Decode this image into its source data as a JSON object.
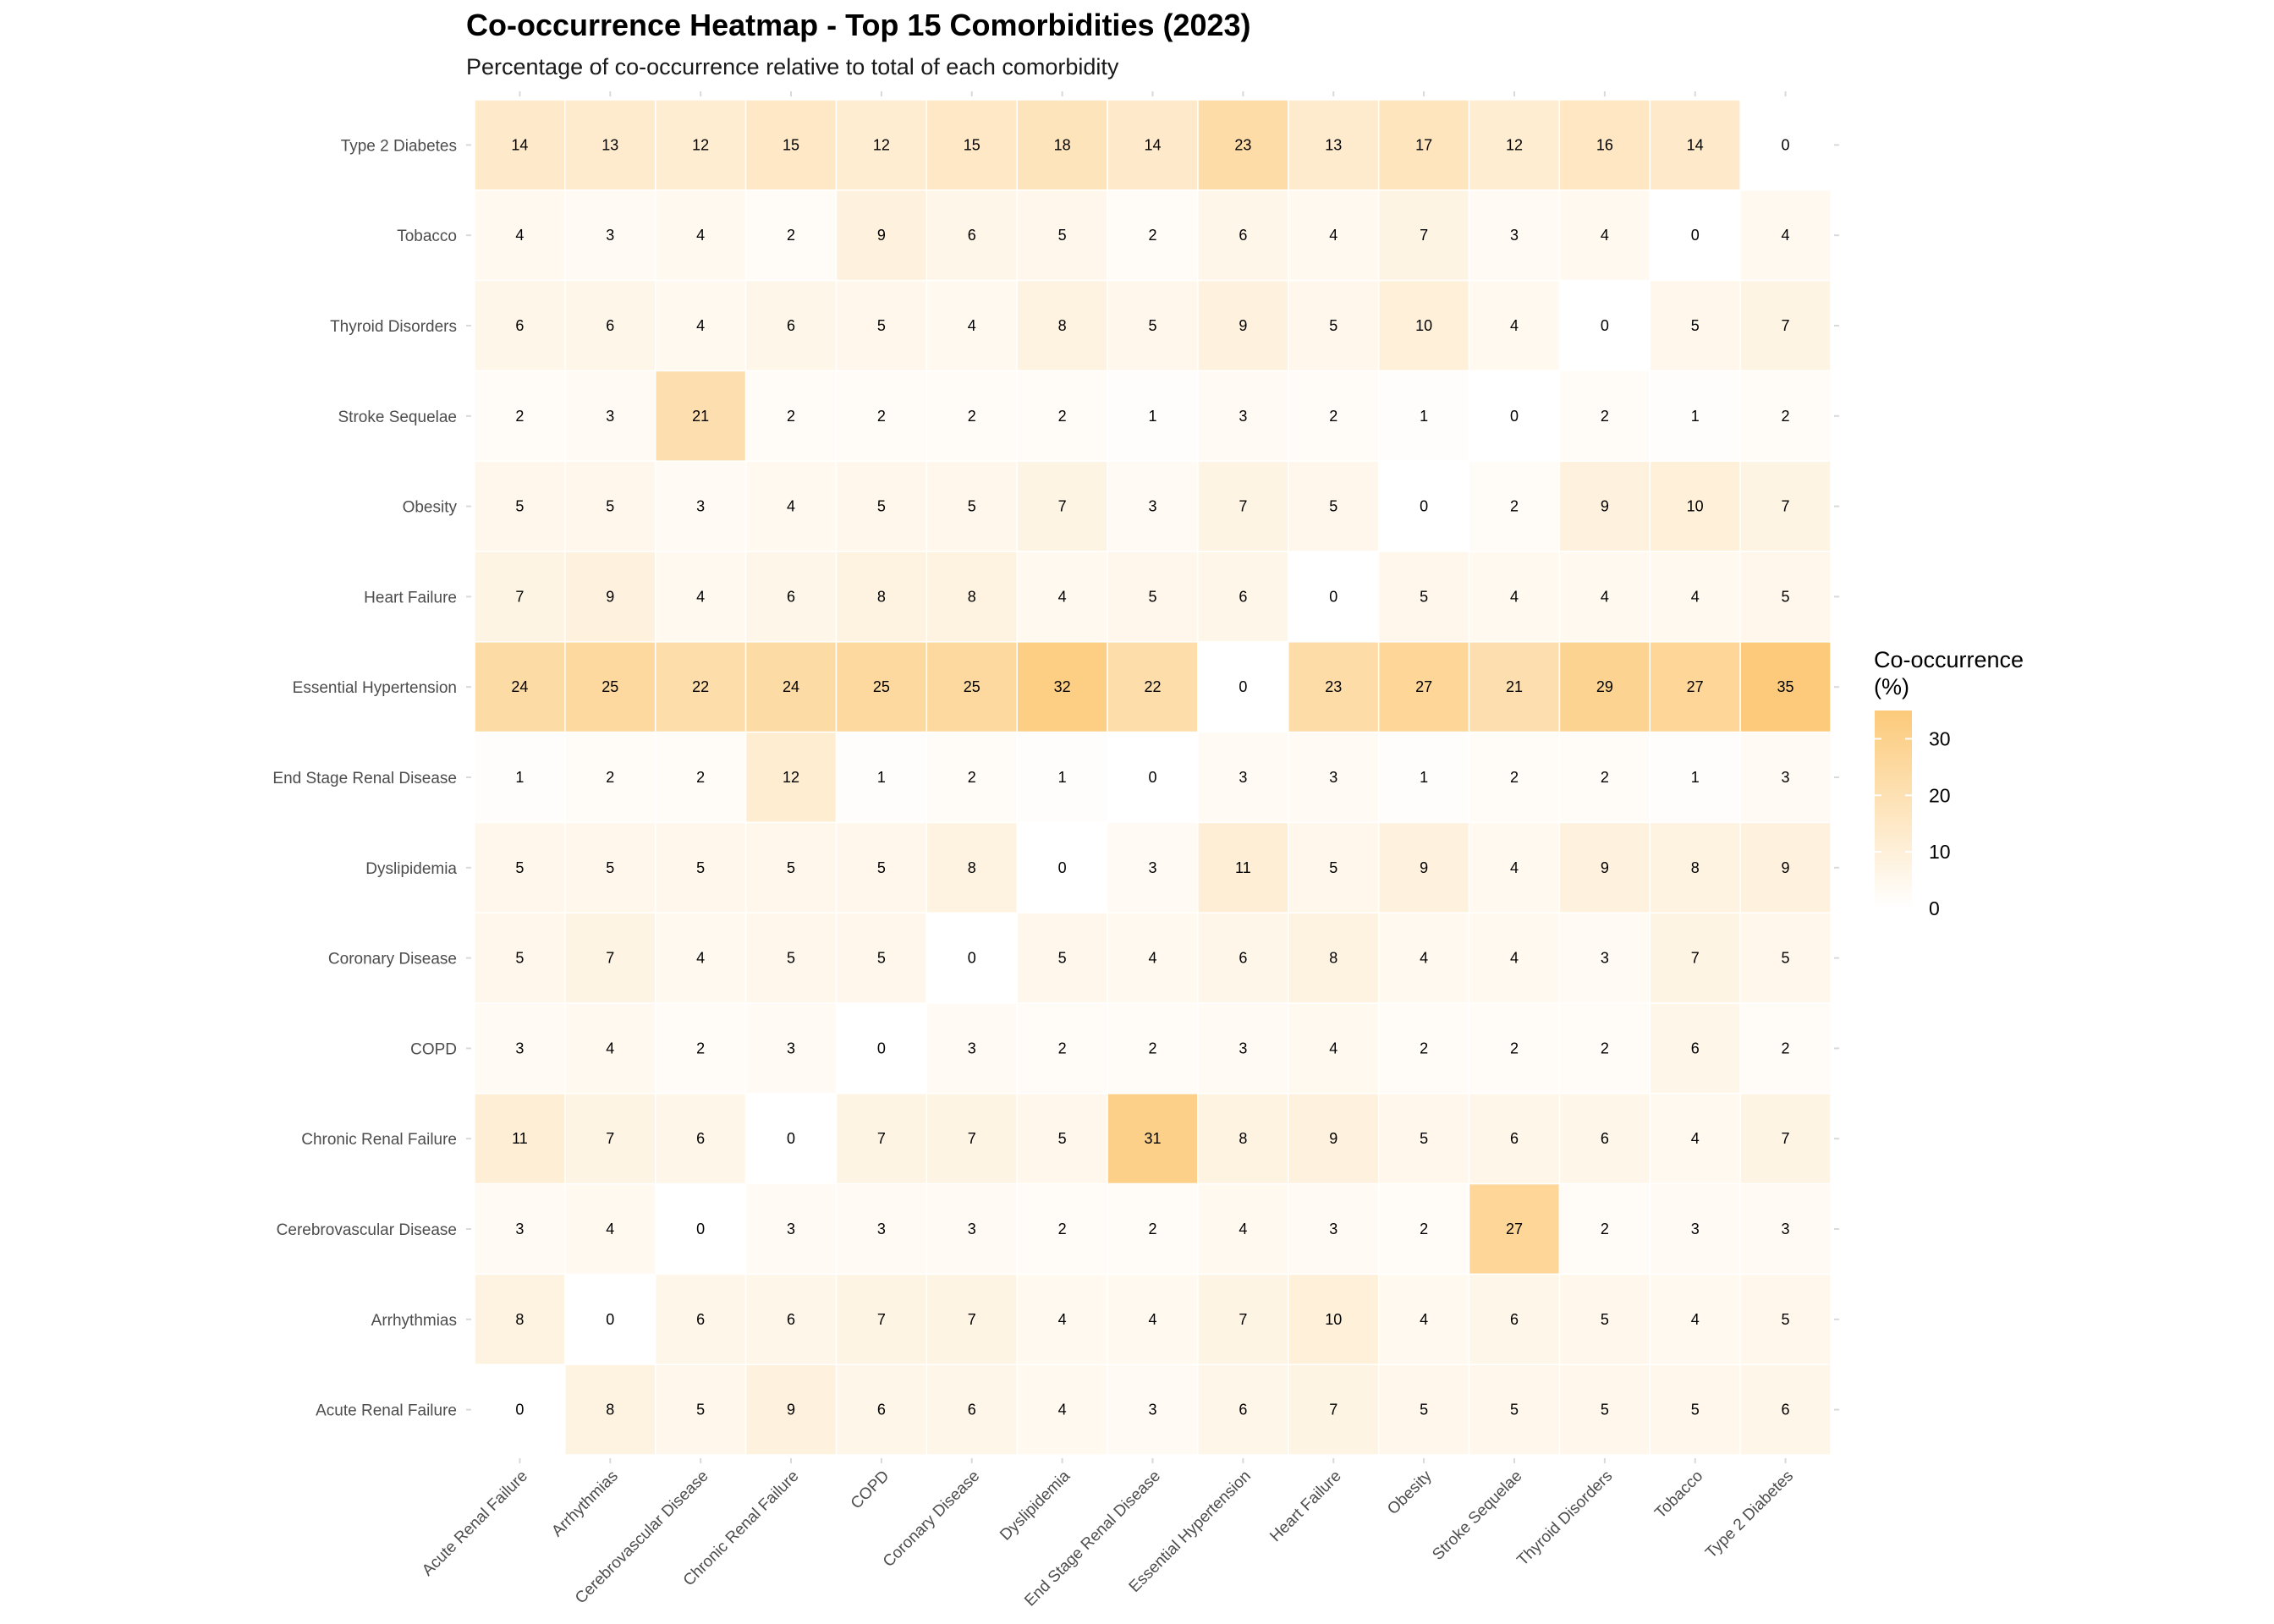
{
  "chart_data": {
    "type": "heatmap",
    "title": "Co-occurrence Heatmap - Top 15 Comorbidities (2023)",
    "subtitle": "Percentage of co-occurrence relative to total of each comorbidity",
    "x_categories": [
      "Acute Renal Failure",
      "Arrhythmias",
      "Cerebrovascular Disease",
      "Chronic Renal Failure",
      "COPD",
      "Coronary Disease",
      "Dyslipidemia",
      "End Stage Renal Disease",
      "Essential Hypertension",
      "Heart Failure",
      "Obesity",
      "Stroke Sequelae",
      "Thyroid Disorders",
      "Tobacco",
      "Type 2 Diabetes"
    ],
    "y_categories": [
      "Type 2 Diabetes",
      "Tobacco",
      "Thyroid Disorders",
      "Stroke Sequelae",
      "Obesity",
      "Heart Failure",
      "Essential Hypertension",
      "End Stage Renal Disease",
      "Dyslipidemia",
      "Coronary Disease",
      "COPD",
      "Chronic Renal Failure",
      "Cerebrovascular Disease",
      "Arrhythmias",
      "Acute Renal Failure"
    ],
    "values": [
      [
        14,
        13,
        12,
        15,
        12,
        15,
        18,
        14,
        23,
        13,
        17,
        12,
        16,
        14,
        0
      ],
      [
        4,
        3,
        4,
        2,
        9,
        6,
        5,
        2,
        6,
        4,
        7,
        3,
        4,
        0,
        4
      ],
      [
        6,
        6,
        4,
        6,
        5,
        4,
        8,
        5,
        9,
        5,
        10,
        4,
        0,
        5,
        7
      ],
      [
        2,
        3,
        21,
        2,
        2,
        2,
        2,
        1,
        3,
        2,
        1,
        0,
        2,
        1,
        2
      ],
      [
        5,
        5,
        3,
        4,
        5,
        5,
        7,
        3,
        7,
        5,
        0,
        2,
        9,
        10,
        7
      ],
      [
        7,
        9,
        4,
        6,
        8,
        8,
        4,
        5,
        6,
        0,
        5,
        4,
        4,
        4,
        5
      ],
      [
        24,
        25,
        22,
        24,
        25,
        25,
        32,
        22,
        0,
        23,
        27,
        21,
        29,
        27,
        35
      ],
      [
        1,
        2,
        2,
        12,
        1,
        2,
        1,
        0,
        3,
        3,
        1,
        2,
        2,
        1,
        3
      ],
      [
        5,
        5,
        5,
        5,
        5,
        8,
        0,
        3,
        11,
        5,
        9,
        4,
        9,
        8,
        9
      ],
      [
        5,
        7,
        4,
        5,
        5,
        0,
        5,
        4,
        6,
        8,
        4,
        4,
        3,
        7,
        5
      ],
      [
        3,
        4,
        2,
        3,
        0,
        3,
        2,
        2,
        3,
        4,
        2,
        2,
        2,
        6,
        2
      ],
      [
        11,
        7,
        6,
        0,
        7,
        7,
        5,
        31,
        8,
        9,
        5,
        6,
        6,
        4,
        7
      ],
      [
        3,
        4,
        0,
        3,
        3,
        3,
        2,
        2,
        4,
        3,
        2,
        27,
        2,
        3,
        3
      ],
      [
        8,
        0,
        6,
        6,
        7,
        7,
        4,
        4,
        7,
        10,
        4,
        6,
        5,
        4,
        5
      ],
      [
        0,
        8,
        5,
        9,
        6,
        6,
        4,
        3,
        6,
        7,
        5,
        5,
        5,
        5,
        6
      ]
    ],
    "color_scale": {
      "low": "#ffffff",
      "high": "#fcca7a",
      "domain": [
        0,
        35
      ]
    },
    "legend": {
      "title_line1": "Co-occurrence",
      "title_line2": "(%)",
      "ticks": [
        0,
        10,
        20,
        30
      ],
      "position": "right"
    },
    "grid": false
  }
}
